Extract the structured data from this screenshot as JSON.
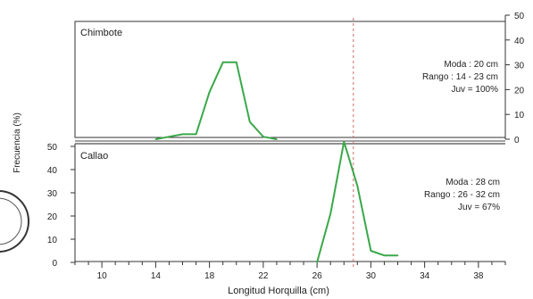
{
  "chart_data": {
    "type": "line",
    "xlabel": "Longitud Horquilla (cm)",
    "ylabel": "Frecuencia (%)",
    "xlim": [
      8,
      40
    ],
    "x_ticks": [
      10,
      14,
      18,
      22,
      26,
      30,
      34,
      38
    ],
    "ylim": [
      0,
      50
    ],
    "y_ticks": [
      0,
      10,
      20,
      30,
      40,
      50
    ],
    "reference_line_x": 28.7,
    "panels": [
      {
        "name": "Chimbote",
        "y_axis_side": "right",
        "annotations": [
          "Moda : 20 cm",
          "Rango : 14 - 23 cm",
          "Juv  = 100%"
        ],
        "series": [
          {
            "color": "#3aa84a",
            "x": [
              14,
              15,
              16,
              17,
              18,
              19,
              20,
              21,
              22,
              23
            ],
            "y": [
              0,
              1,
              2,
              2,
              19,
              31,
              31,
              7,
              1,
              0
            ]
          }
        ]
      },
      {
        "name": "Callao",
        "y_axis_side": "left",
        "annotations": [
          "Moda : 28 cm",
          "Rango : 26 - 32 cm",
          "Juv  = 67%"
        ],
        "series": [
          {
            "color": "#3aa84a",
            "x": [
              26,
              27,
              28,
              29,
              30,
              31,
              32
            ],
            "y": [
              0,
              21,
              52,
              33,
              5,
              3,
              3
            ]
          }
        ]
      }
    ]
  }
}
